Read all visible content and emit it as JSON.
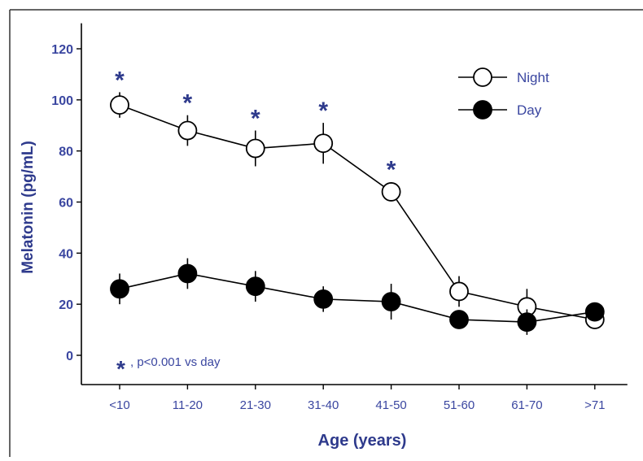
{
  "chart_data": {
    "type": "line",
    "xlabel": "Age (years)",
    "ylabel": "Melatonin (pg/mL)",
    "categories": [
      "<10",
      "11-20",
      "21-30",
      "31-40",
      "41-50",
      "51-60",
      "61-70",
      ">71"
    ],
    "y_ticks": [
      "0",
      "20",
      "40",
      "60",
      "80",
      "100",
      "120"
    ],
    "ylim": [
      -12,
      130
    ],
    "grid": false,
    "legend_position": "top-right",
    "series": [
      {
        "name": "Night",
        "marker": "open-circle",
        "values": [
          98,
          88,
          81,
          83,
          64,
          25,
          19,
          14
        ],
        "error": [
          5,
          6,
          7,
          8,
          0,
          6,
          7,
          0
        ],
        "significant": [
          true,
          true,
          true,
          true,
          true,
          false,
          false,
          false
        ]
      },
      {
        "name": "Day",
        "marker": "filled-circle",
        "values": [
          26,
          32,
          27,
          22,
          21,
          14,
          13,
          17
        ],
        "error": [
          6,
          6,
          6,
          5,
          7,
          0,
          5,
          0
        ]
      }
    ],
    "annotation": {
      "marker": "*",
      "text": ", p<0.001 vs day"
    }
  },
  "colors": {
    "axis_label": "#2e3a8c",
    "tick_label": "#3a46a0",
    "asterisk": "#2e3a8c",
    "line": "#000000",
    "frame": "#333333"
  }
}
